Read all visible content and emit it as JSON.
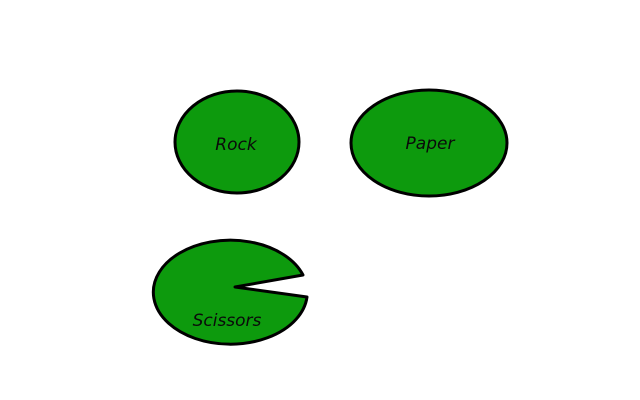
{
  "choices": {
    "rock": {
      "label": "Rock"
    },
    "paper": {
      "label": "Paper"
    },
    "scissors": {
      "label": "Scissors"
    }
  },
  "colors": {
    "fill": "#0d9a0d",
    "stroke": "#000000",
    "background": "#ffffff"
  }
}
